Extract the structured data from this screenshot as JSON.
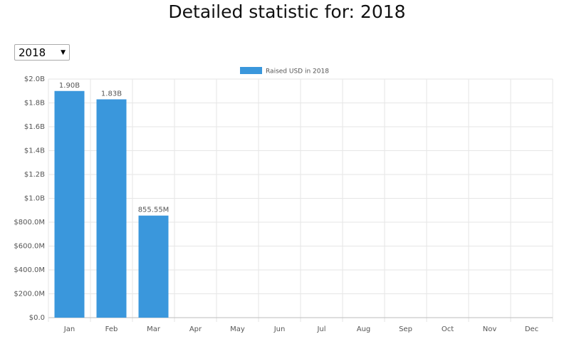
{
  "header": {
    "title": "Detailed statistic for: 2018"
  },
  "year_select": {
    "value": "2018"
  },
  "chart_data": {
    "type": "bar",
    "categories": [
      "Jan",
      "Feb",
      "Mar",
      "Apr",
      "May",
      "Jun",
      "Jul",
      "Aug",
      "Sep",
      "Oct",
      "Nov",
      "Dec"
    ],
    "series": [
      {
        "name": "Raised USD in 2018",
        "color": "#3a97dc",
        "values": [
          1900000000,
          1830000000,
          855550000,
          null,
          null,
          null,
          null,
          null,
          null,
          null,
          null,
          null
        ],
        "value_labels": [
          "1.90B",
          "1.83B",
          "855.55M",
          null,
          null,
          null,
          null,
          null,
          null,
          null,
          null,
          null
        ]
      }
    ],
    "ylim": [
      0,
      2000000000
    ],
    "yticks": [
      {
        "value": 0,
        "label": "$0.0"
      },
      {
        "value": 200000000,
        "label": "$200.0M"
      },
      {
        "value": 400000000,
        "label": "$400.0M"
      },
      {
        "value": 600000000,
        "label": "$600.0M"
      },
      {
        "value": 800000000,
        "label": "$800.0M"
      },
      {
        "value": 1000000000,
        "label": "$1.0B"
      },
      {
        "value": 1200000000,
        "label": "$1.2B"
      },
      {
        "value": 1400000000,
        "label": "$1.4B"
      },
      {
        "value": 1600000000,
        "label": "$1.6B"
      },
      {
        "value": 1800000000,
        "label": "$1.8B"
      },
      {
        "value": 2000000000,
        "label": "$2.0B"
      }
    ],
    "grid": true,
    "legend": "top"
  }
}
